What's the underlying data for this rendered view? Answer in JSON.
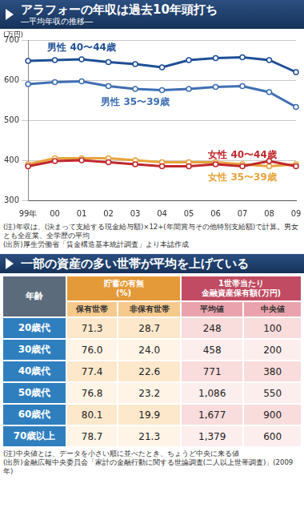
{
  "chart_data": {
    "type": "line",
    "title": "アラフォーの年収は過去10年頭打ち",
    "subtitle": "―平均年収の推移―",
    "y_label": "(万円)",
    "categories": [
      "99年",
      "00",
      "01",
      "02",
      "03",
      "04",
      "05",
      "06",
      "07",
      "08",
      "09"
    ],
    "series": [
      {
        "name": "男性 40〜44歳",
        "color": "#1f4f96",
        "values": [
          648,
          650,
          652,
          645,
          640,
          632,
          650,
          655,
          657,
          650,
          620
        ]
      },
      {
        "name": "男性 35〜39歳",
        "color": "#3f6fb3",
        "values": [
          590,
          595,
          597,
          585,
          578,
          575,
          578,
          583,
          585,
          570,
          533
        ]
      },
      {
        "name": "女性 40〜44歳",
        "color": "#c0282d",
        "values": [
          385,
          398,
          400,
          395,
          390,
          385,
          385,
          390,
          385,
          398,
          385
        ]
      },
      {
        "name": "女性 35〜39歳",
        "color": "#e8a33a",
        "values": [
          390,
          405,
          405,
          405,
          400,
          395,
          395,
          395,
          390,
          385,
          390
        ]
      }
    ],
    "ylim": [
      300,
      700
    ],
    "yticks": [
      300,
      400,
      500,
      600,
      700
    ],
    "grid": true,
    "marker": "circle",
    "line_style": "solid",
    "notes": [
      "(注)年収は、(決まって支給する現金給与額)×12+(年間賞与その他特別支給額)で計算。男女とも全産業、全学歴の平均",
      "(出所)厚生労働省「賃金構造基本統計調査」より本誌作成"
    ]
  },
  "table": {
    "title": "一部の資産の多い世帯が平均を上げている",
    "row_header": "年齢",
    "groups": [
      {
        "label_lines": [
          "貯蓄の有無",
          "(%)"
        ],
        "columns": [
          "保有世帯",
          "非保有世帯"
        ]
      },
      {
        "label_lines": [
          "1世帯当たり",
          "金融資産保有額(万円)"
        ],
        "columns": [
          "平均値",
          "中央値"
        ]
      }
    ],
    "rows": [
      {
        "label": "20歳代",
        "values": [
          "71.3",
          "28.7",
          "248",
          "100"
        ]
      },
      {
        "label": "30歳代",
        "values": [
          "76.0",
          "24.0",
          "458",
          "200"
        ]
      },
      {
        "label": "40歳代",
        "values": [
          "77.4",
          "22.6",
          "771",
          "380"
        ]
      },
      {
        "label": "50歳代",
        "values": [
          "76.8",
          "23.2",
          "1,086",
          "550"
        ]
      },
      {
        "label": "60歳代",
        "values": [
          "80.1",
          "19.9",
          "1,677",
          "900"
        ]
      },
      {
        "label": "70歳以上",
        "values": [
          "78.7",
          "21.3",
          "1,379",
          "600"
        ]
      }
    ],
    "notes": [
      "(注)中央値とは、データを小さい順に並べたとき、ちょうど中央に来る値",
      "(出所)金融広報中央委員会「家計の金融行動に関する世論調査(二人以上世帯調査)」(2009年)"
    ]
  }
}
